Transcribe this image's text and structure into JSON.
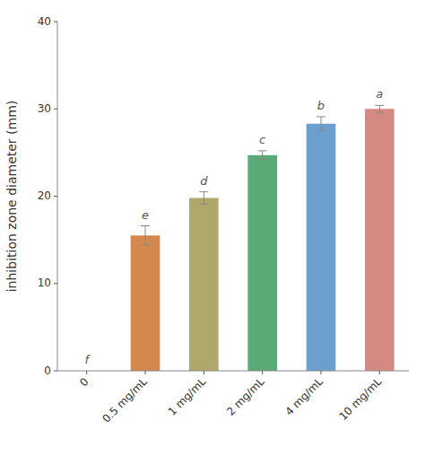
{
  "chart_data": {
    "type": "bar",
    "categories": [
      "0",
      "0.5 mg/mL",
      "1 mg/mL",
      "2 mg/mL",
      "4 mg/mL",
      "10 mg/mL"
    ],
    "values": [
      0,
      15.5,
      19.8,
      24.7,
      28.3,
      30.0
    ],
    "errors": [
      0,
      1.1,
      0.7,
      0.5,
      0.8,
      0.4
    ],
    "colors": [
      "#ffffff",
      "#d4884e",
      "#b0a86a",
      "#5aaa78",
      "#6b9fcf",
      "#d48a82"
    ],
    "annotations": [
      "f",
      "e",
      "d",
      "c",
      "b",
      "a"
    ],
    "y_label": "inhibition zone diameter (mm)",
    "ylim": [
      0,
      40
    ],
    "yticks": [
      0,
      10,
      20,
      30,
      40
    ],
    "grid": false
  }
}
